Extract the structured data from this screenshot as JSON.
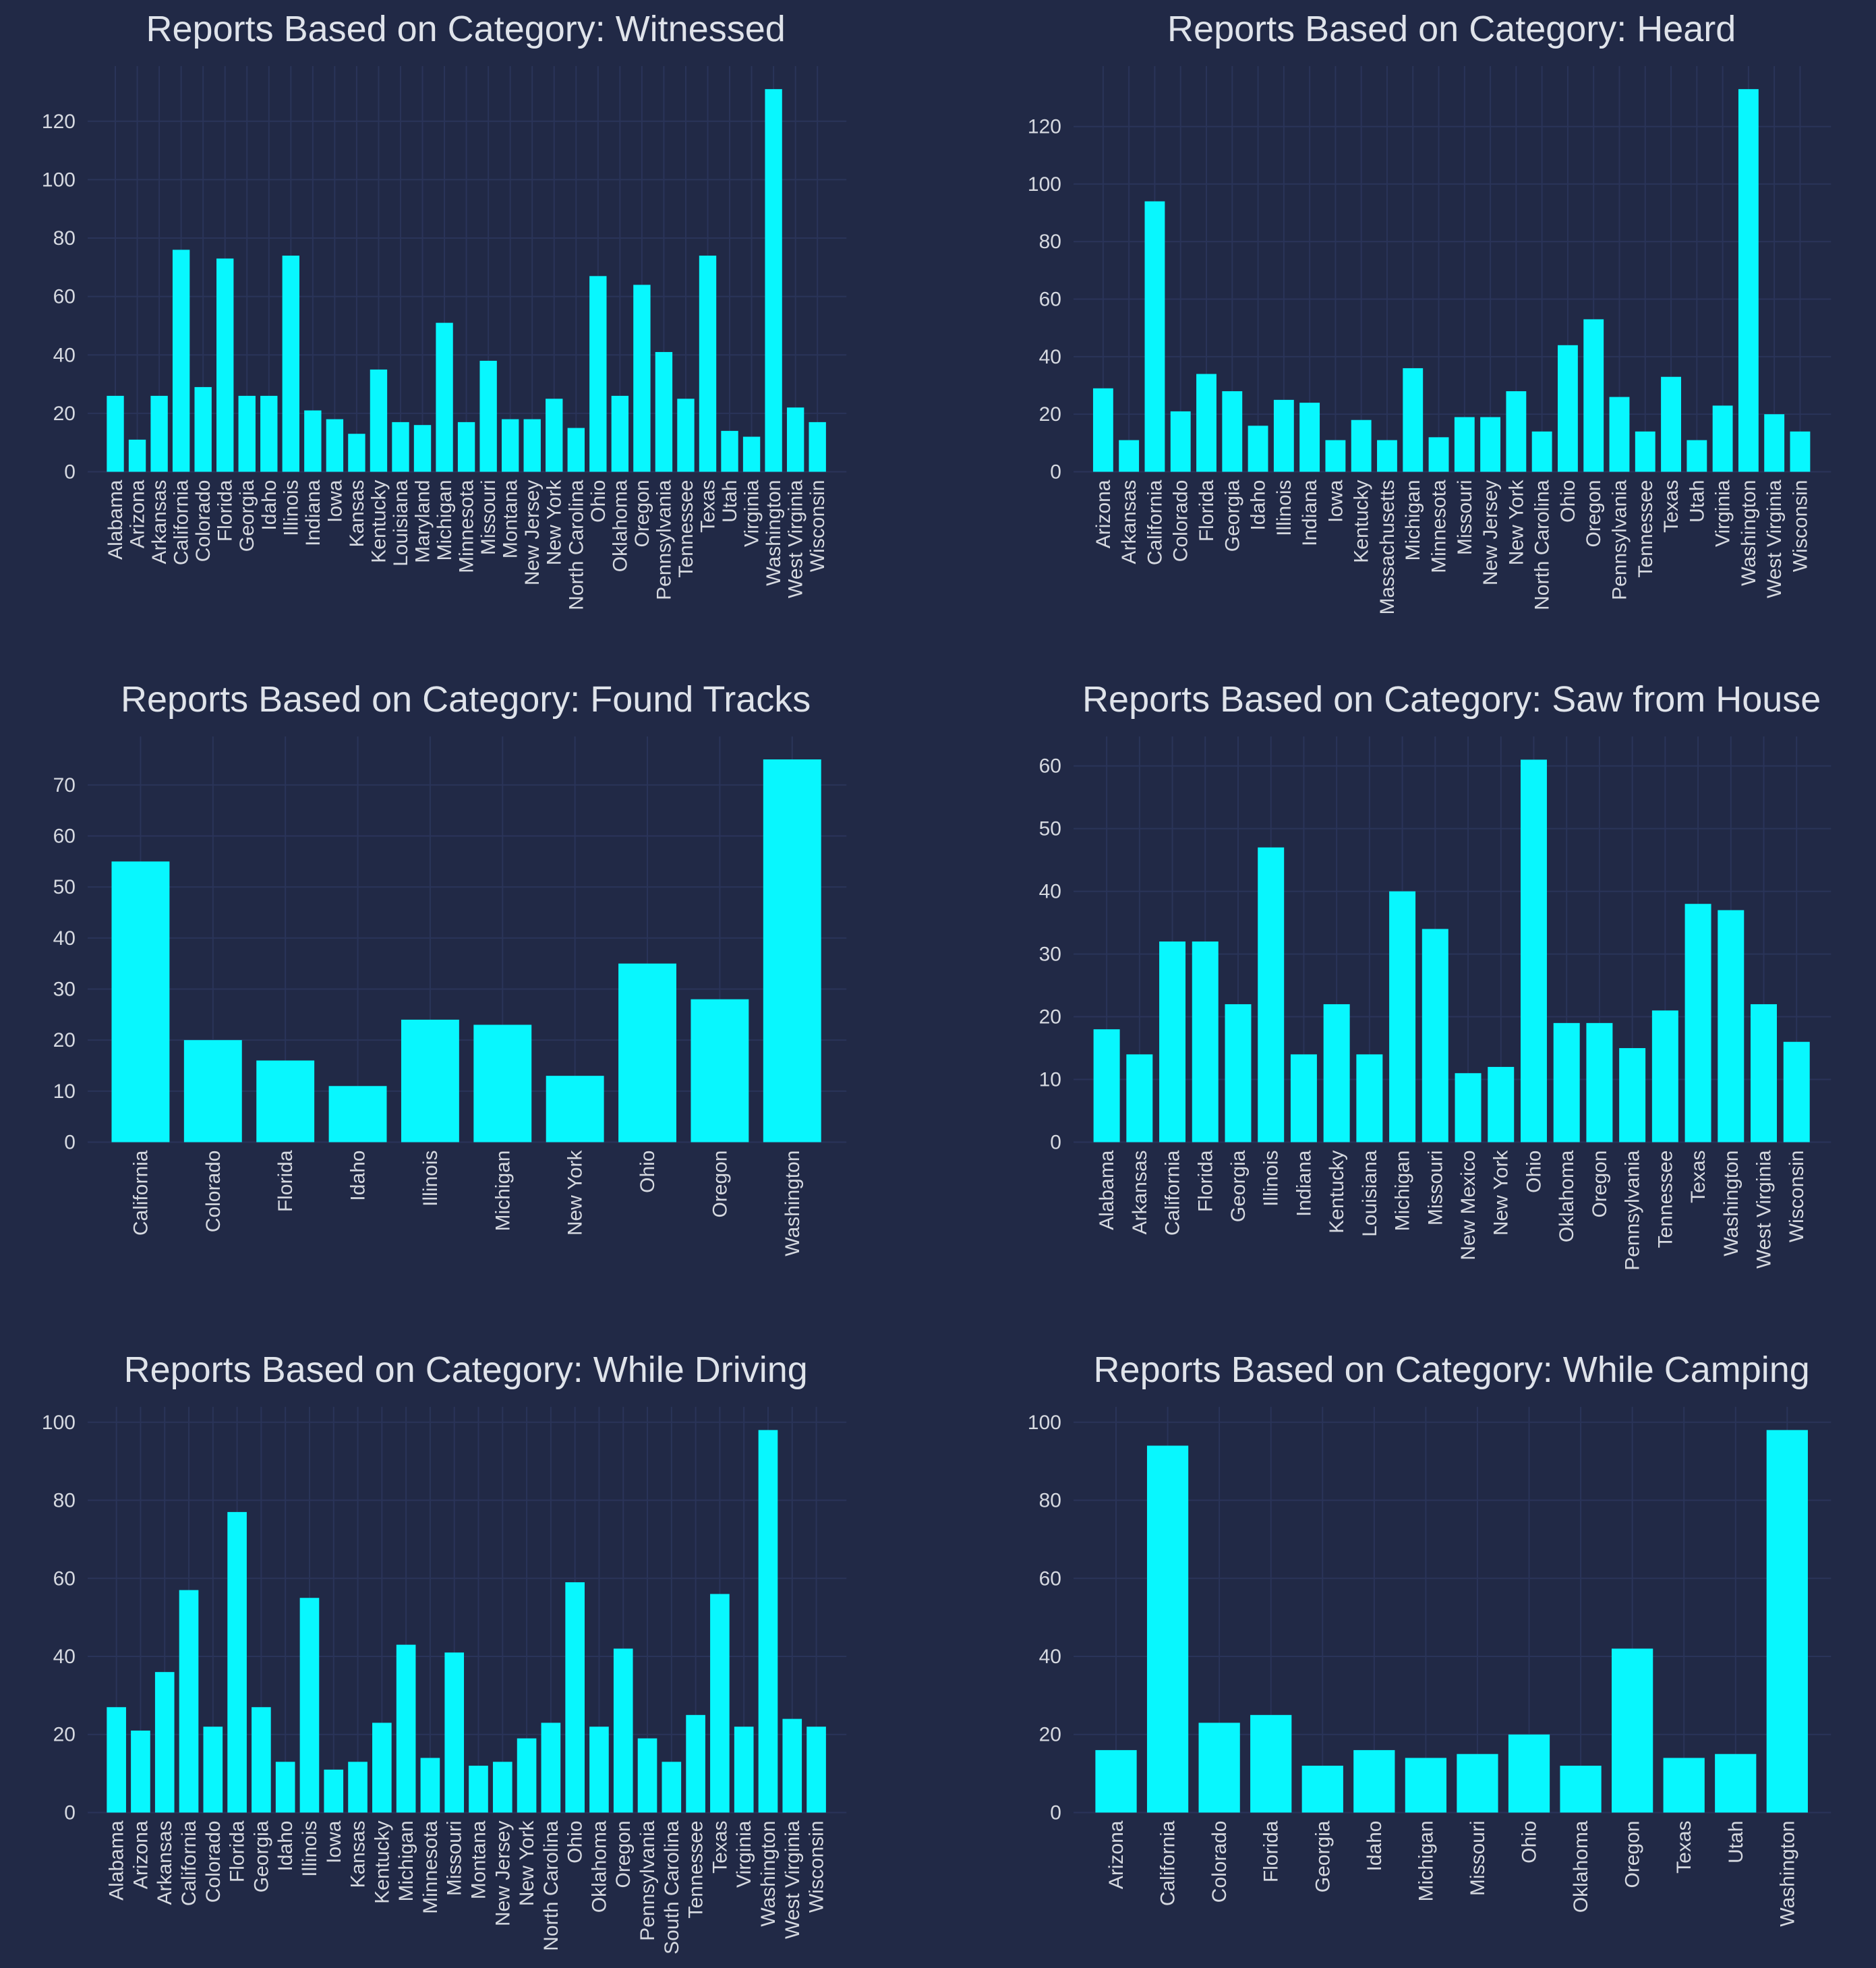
{
  "colors": {
    "background": "#212946",
    "bar": "#08f7fe",
    "grid": "#2a3459",
    "text": "#d6d9e0"
  },
  "chart_data": [
    {
      "type": "bar",
      "title": "Reports Based on Category: Witnessed",
      "categories": [
        "Alabama",
        "Arizona",
        "Arkansas",
        "California",
        "Colorado",
        "Florida",
        "Georgia",
        "Idaho",
        "Illinois",
        "Indiana",
        "Iowa",
        "Kansas",
        "Kentucky",
        "Louisiana",
        "Maryland",
        "Michigan",
        "Minnesota",
        "Missouri",
        "Montana",
        "New Jersey",
        "New York",
        "North Carolina",
        "Ohio",
        "Oklahoma",
        "Oregon",
        "Pennsylvania",
        "Tennessee",
        "Texas",
        "Utah",
        "Virginia",
        "Washington",
        "West Virginia",
        "Wisconsin"
      ],
      "values": [
        26,
        11,
        26,
        76,
        29,
        73,
        26,
        26,
        74,
        21,
        18,
        13,
        35,
        17,
        16,
        51,
        17,
        38,
        18,
        18,
        25,
        15,
        67,
        26,
        64,
        41,
        25,
        74,
        14,
        12,
        131,
        22,
        17
      ],
      "yticks": [
        0,
        20,
        40,
        60,
        80,
        100,
        120
      ],
      "ylim": [
        0,
        137.5
      ],
      "grid": true
    },
    {
      "type": "bar",
      "title": "Reports Based on Category: Heard",
      "categories": [
        "Arizona",
        "Arkansas",
        "California",
        "Colorado",
        "Florida",
        "Georgia",
        "Idaho",
        "Illinois",
        "Indiana",
        "Iowa",
        "Kentucky",
        "Massachusetts",
        "Michigan",
        "Minnesota",
        "Missouri",
        "New Jersey",
        "New York",
        "North Carolina",
        "Ohio",
        "Oregon",
        "Pennsylvania",
        "Tennessee",
        "Texas",
        "Utah",
        "Virginia",
        "Washington",
        "West Virginia",
        "Wisconsin"
      ],
      "values": [
        29,
        11,
        94,
        21,
        34,
        28,
        16,
        25,
        24,
        11,
        18,
        11,
        36,
        12,
        19,
        19,
        28,
        14,
        44,
        53,
        26,
        14,
        33,
        11,
        23,
        133,
        20,
        14
      ],
      "yticks": [
        0,
        20,
        40,
        60,
        80,
        100,
        120
      ],
      "ylim": [
        0,
        139.6
      ],
      "grid": true
    },
    {
      "type": "bar",
      "title": "Reports Based on Category: Found Tracks",
      "categories": [
        "California",
        "Colorado",
        "Florida",
        "Idaho",
        "Illinois",
        "Michigan",
        "New York",
        "Ohio",
        "Oregon",
        "Washington"
      ],
      "values": [
        55,
        20,
        16,
        11,
        24,
        23,
        13,
        35,
        28,
        75
      ],
      "yticks": [
        0,
        10,
        20,
        30,
        40,
        50,
        60,
        70
      ],
      "ylim": [
        0,
        78.7
      ],
      "grid": true
    },
    {
      "type": "bar",
      "title": "Reports Based on Category: Saw from House",
      "categories": [
        "Alabama",
        "Arkansas",
        "California",
        "Florida",
        "Georgia",
        "Illinois",
        "Indiana",
        "Kentucky",
        "Louisiana",
        "Michigan",
        "Missouri",
        "New Mexico",
        "New York",
        "Ohio",
        "Oklahoma",
        "Oregon",
        "Pennsylvania",
        "Tennessee",
        "Texas",
        "Washington",
        "West Virginia",
        "Wisconsin"
      ],
      "values": [
        18,
        14,
        32,
        32,
        22,
        47,
        14,
        22,
        14,
        40,
        34,
        11,
        12,
        61,
        19,
        19,
        15,
        21,
        38,
        37,
        22,
        16
      ],
      "yticks": [
        0,
        10,
        20,
        30,
        40,
        50,
        60
      ],
      "ylim": [
        0,
        64.05
      ],
      "grid": true
    },
    {
      "type": "bar",
      "title": "Reports Based on Category: While Driving",
      "categories": [
        "Alabama",
        "Arizona",
        "Arkansas",
        "California",
        "Colorado",
        "Florida",
        "Georgia",
        "Idaho",
        "Illinois",
        "Iowa",
        "Kansas",
        "Kentucky",
        "Michigan",
        "Minnesota",
        "Missouri",
        "Montana",
        "New Jersey",
        "New York",
        "North Carolina",
        "Ohio",
        "Oklahoma",
        "Oregon",
        "Pennsylvania",
        "South Carolina",
        "Tennessee",
        "Texas",
        "Virginia",
        "Washington",
        "West Virginia",
        "Wisconsin"
      ],
      "values": [
        27,
        21,
        36,
        57,
        22,
        77,
        27,
        13,
        55,
        11,
        13,
        23,
        43,
        14,
        41,
        12,
        13,
        19,
        23,
        59,
        22,
        42,
        19,
        13,
        25,
        56,
        22,
        98,
        24,
        22
      ],
      "yticks": [
        0,
        20,
        40,
        60,
        80,
        100
      ],
      "ylim": [
        0,
        102.9
      ],
      "grid": true
    },
    {
      "type": "bar",
      "title": "Reports Based on Category: While Camping",
      "categories": [
        "Arizona",
        "California",
        "Colorado",
        "Florida",
        "Georgia",
        "Idaho",
        "Michigan",
        "Missouri",
        "Ohio",
        "Oklahoma",
        "Oregon",
        "Texas",
        "Utah",
        "Washington"
      ],
      "values": [
        16,
        94,
        23,
        25,
        12,
        16,
        14,
        15,
        20,
        12,
        42,
        14,
        15,
        98
      ],
      "yticks": [
        0,
        20,
        40,
        60,
        80,
        100
      ],
      "ylim": [
        0,
        102.9
      ],
      "grid": true
    }
  ]
}
